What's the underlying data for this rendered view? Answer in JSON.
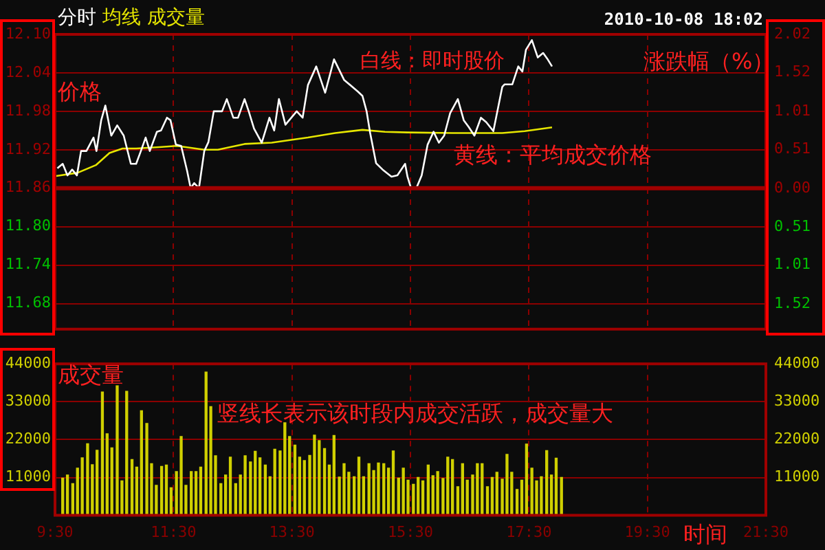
{
  "chart_data": [
    {
      "type": "line",
      "title": "分时 均线 成交量",
      "subtitle": "2010-10-08 18:02",
      "ylabel": "价格",
      "y2label": "涨跌幅（%）",
      "annotations": [
        "白线：即时股价",
        "黄线：平均成交价格"
      ],
      "series": [
        {
          "color": "#ffffff",
          "x": [
            9.54,
            9.63,
            9.71,
            9.79,
            9.87,
            9.94,
            10.03,
            10.15,
            10.2,
            10.28,
            10.35,
            10.45,
            10.55,
            10.66,
            10.78,
            10.87,
            10.95,
            11.03,
            11.1,
            11.22,
            11.29,
            11.39,
            11.45,
            11.54,
            11.63,
            11.73,
            11.79,
            11.85,
            11.93,
            12.02,
            12.09,
            12.18,
            12.32,
            12.4,
            12.51,
            12.59,
            12.7,
            12.77,
            12.86,
            12.99,
            13.12,
            13.2,
            13.28,
            13.39,
            13.58,
            13.68,
            13.77,
            13.91,
            14.06,
            14.21,
            14.38,
            14.61,
            14.69,
            14.76,
            14.82,
            14.92,
            15.03,
            15.18,
            15.28,
            15.41,
            15.45,
            15.51,
            15.6,
            15.69,
            15.79,
            15.89,
            15.98,
            16.07,
            16.17,
            16.3,
            16.4,
            16.48,
            16.58,
            16.69,
            16.78,
            16.9,
            17.05,
            17.09,
            17.22,
            17.32,
            17.39,
            17.45,
            17.55,
            17.65,
            17.74,
            17.81,
            17.89
          ],
          "values": [
            11.891,
            11.898,
            11.88,
            11.889,
            11.88,
            11.918,
            11.918,
            11.939,
            11.918,
            11.966,
            11.989,
            11.942,
            11.958,
            11.942,
            11.898,
            11.898,
            11.918,
            11.939,
            11.918,
            11.948,
            11.95,
            11.97,
            11.966,
            11.928,
            11.926,
            11.887,
            11.86,
            11.868,
            11.86,
            11.918,
            11.932,
            11.98,
            11.98,
            11.999,
            11.97,
            11.97,
            11.999,
            11.98,
            11.953,
            11.931,
            11.97,
            11.95,
            11.999,
            11.959,
            11.98,
            11.97,
            12.021,
            12.05,
            12.009,
            12.061,
            12.029,
            12.011,
            12.004,
            11.98,
            11.946,
            11.899,
            11.889,
            11.878,
            11.88,
            11.898,
            11.878,
            11.86,
            11.86,
            11.88,
            11.928,
            11.948,
            11.931,
            11.942,
            11.977,
            11.999,
            11.966,
            11.956,
            11.942,
            11.97,
            11.963,
            11.949,
            12.018,
            12.022,
            12.022,
            12.05,
            12.042,
            12.076,
            12.091,
            12.064,
            12.071,
            12.062,
            12.05
          ]
        },
        {
          "color": "#e6e600",
          "x": [
            9.52,
            9.88,
            10.19,
            10.42,
            10.64,
            10.87,
            11.26,
            11.56,
            12.02,
            12.25,
            12.7,
            13.16,
            13.77,
            14.23,
            14.69,
            15.07,
            15.45,
            16.21,
            17.05,
            17.43,
            17.89
          ],
          "values": [
            11.879,
            11.884,
            11.896,
            11.915,
            11.922,
            11.922,
            11.924,
            11.926,
            11.92,
            11.92,
            11.929,
            11.931,
            11.939,
            11.946,
            11.951,
            11.948,
            11.947,
            11.946,
            11.946,
            11.949,
            11.955
          ]
        }
      ],
      "xlim": [
        9.5,
        21.5
      ],
      "xticks": [
        9.5,
        11.5,
        13.5,
        15.5,
        17.5,
        19.5,
        21.5
      ],
      "ylim": [
        11.64,
        12.1
      ],
      "yticks": [
        {
          "value": 12.1,
          "label": "12.10"
        },
        12.04,
        11.98,
        11.92,
        11.86,
        {
          "value": 11.8,
          "label": "11.80"
        },
        11.74,
        11.68
      ],
      "y2lim": [
        -1.85,
        2.02
      ],
      "y2ticks": [
        2.02,
        1.52,
        1.01,
        0.51,
        {
          "value": 0,
          "label": "0.00"
        },
        {
          "value": -0.51,
          "label": "0.51"
        },
        {
          "value": -1.01,
          "label": "1.01"
        },
        {
          "value": -1.52,
          "label": "1.52"
        }
      ],
      "ref_lines": [
        {
          "axis": "y",
          "value": 11.86,
          "color": "#a00000"
        }
      ],
      "grid": true,
      "legend": false,
      "marker": "none",
      "line_style": "solid",
      "tick_labels": "y"
    },
    {
      "type": "bar",
      "ylabel": "成交量",
      "xlabel": "时间",
      "annotations": [
        "竖线长表示该时段内成交活跃，成交量大"
      ],
      "color": "#d0d000",
      "x": [
        9.63,
        9.71,
        9.8,
        9.88,
        9.96,
        10.05,
        10.13,
        10.21,
        10.3,
        10.38,
        10.46,
        10.55,
        10.63,
        10.71,
        10.8,
        10.88,
        10.96,
        11.05,
        11.13,
        11.21,
        11.3,
        11.38,
        11.46,
        11.55,
        11.63,
        11.71,
        11.8,
        11.88,
        11.96,
        12.05,
        12.13,
        12.21,
        12.3,
        12.38,
        12.46,
        12.55,
        12.63,
        12.71,
        12.8,
        12.88,
        12.96,
        13.05,
        13.13,
        13.21,
        13.3,
        13.38,
        13.46,
        13.55,
        13.63,
        13.71,
        13.8,
        13.88,
        13.96,
        14.05,
        14.13,
        14.21,
        14.3,
        14.38,
        14.46,
        14.55,
        14.63,
        14.71,
        14.8,
        14.88,
        14.96,
        15.05,
        15.13,
        15.21,
        15.3,
        15.38,
        15.46,
        15.55,
        15.63,
        15.71,
        15.8,
        15.88,
        15.96,
        16.05,
        16.13,
        16.21,
        16.3,
        16.38,
        16.46,
        16.55,
        16.63,
        16.71,
        16.8,
        16.88,
        16.96,
        17.05,
        17.13,
        17.21,
        17.3,
        17.38,
        17.46,
        17.55,
        17.63,
        17.71,
        17.8,
        17.88,
        17.96,
        18.05
      ],
      "values": [
        10800,
        11700,
        9200,
        13700,
        16700,
        20800,
        14700,
        18900,
        35800,
        23700,
        19600,
        37600,
        10000,
        36000,
        16200,
        14000,
        30400,
        26700,
        15000,
        8700,
        14200,
        14600,
        8000,
        12700,
        22900,
        8700,
        12700,
        12700,
        14000,
        41600,
        31600,
        17300,
        9200,
        11700,
        16900,
        9200,
        11700,
        17300,
        15500,
        18600,
        16700,
        14600,
        11200,
        19200,
        18700,
        26900,
        22900,
        20400,
        16900,
        15900,
        17400,
        23300,
        21700,
        19400,
        14600,
        23200,
        11100,
        15000,
        12500,
        11200,
        16900,
        11200,
        15000,
        13000,
        15200,
        15000,
        13700,
        18700,
        10800,
        13700,
        10200,
        9000,
        11000,
        10000,
        14600,
        11500,
        12700,
        10700,
        16900,
        16200,
        8300,
        15000,
        10200,
        11700,
        15000,
        15000,
        8300,
        11000,
        12500,
        10500,
        17700,
        12500,
        7500,
        10200,
        20700,
        13700,
        10000,
        11200,
        18800,
        11700,
        16600,
        11000
      ],
      "xlim": [
        9.5,
        21.5
      ],
      "xticks": [
        {
          "value": 9.5,
          "label": "9:30"
        },
        {
          "value": 11.5,
          "label": "11:30"
        },
        {
          "value": 13.5,
          "label": "13:30"
        },
        {
          "value": 15.5,
          "label": "15:30"
        },
        {
          "value": 17.5,
          "label": "17:30"
        },
        {
          "value": 19.5,
          "label": "19:30"
        },
        {
          "value": 21.5,
          "label": "21:30"
        }
      ],
      "ylim": [
        0,
        44000
      ],
      "yticks": [
        11000,
        22000,
        33000,
        44000
      ],
      "y2lim": [
        0,
        44000
      ],
      "y2ticks": [
        11000,
        22000,
        33000,
        44000
      ],
      "grid": true,
      "legend": false
    }
  ]
}
